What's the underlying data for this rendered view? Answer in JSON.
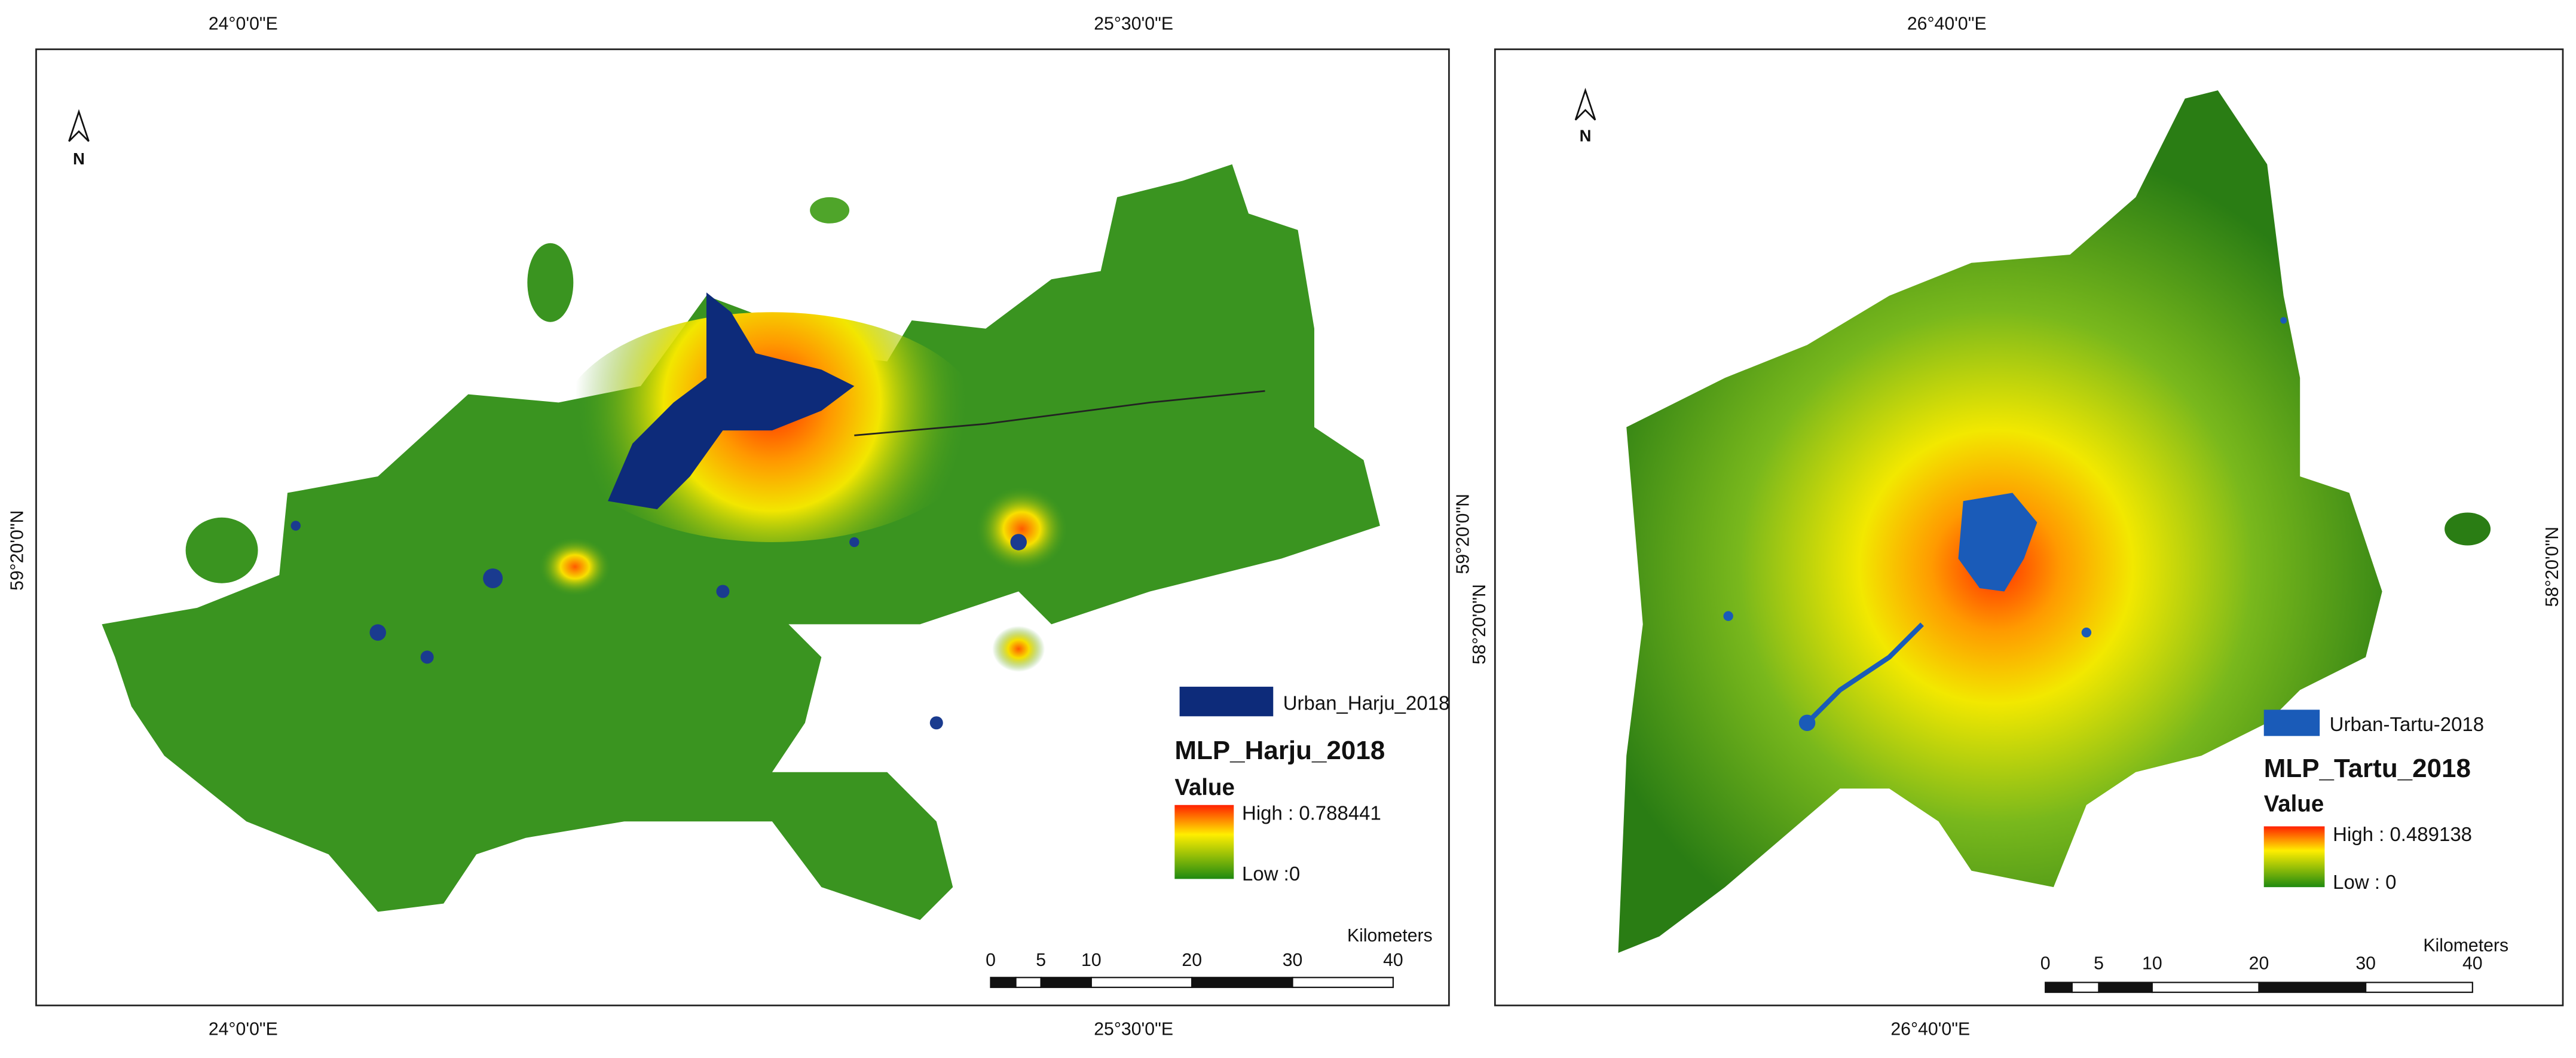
{
  "panels": [
    {
      "top_coords": [
        "24°0'0\"E",
        "25°30'0\"E"
      ],
      "bottom_coords": [
        "24°0'0\"E",
        "25°30'0\"E"
      ],
      "left_coord": "59°20'0\"N",
      "right_coord": "59°20'0\"N",
      "north": "N",
      "legend": {
        "urban": "Urban_Harju_2018",
        "title": "MLP_Harju_2018",
        "value": "Value",
        "high": "High : 0.788441",
        "low": "Low :0"
      },
      "scale": {
        "unit": "Kilometers",
        "labels": [
          0,
          5,
          10,
          20,
          30,
          40
        ]
      }
    },
    {
      "top_coords": [
        "26°40'0\"E"
      ],
      "bottom_coords": [
        "26°40'0\"E"
      ],
      "left_coord": "58°20'0\"N",
      "right_coord": "58°20'0\"N",
      "north": "N",
      "legend": {
        "urban": "Urban-Tartu-2018",
        "title": "MLP_Tartu_2018",
        "value": "Value",
        "high": "High : 0.489138",
        "low": "Low : 0"
      },
      "scale": {
        "unit": "Kilometers",
        "labels": [
          0,
          5,
          10,
          20,
          30,
          40
        ]
      }
    }
  ]
}
